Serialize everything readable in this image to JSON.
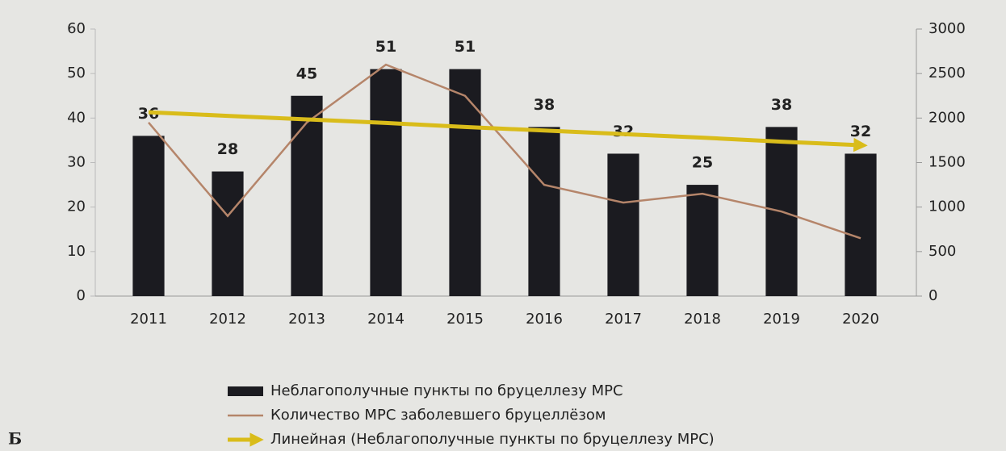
{
  "chart_data": {
    "type": "bar",
    "panel_label": "Б",
    "categories": [
      "2011",
      "2012",
      "2013",
      "2014",
      "2015",
      "2016",
      "2017",
      "2018",
      "2019",
      "2020"
    ],
    "series": [
      {
        "name": "Неблагополучные пункты по бруцеллезу МРС",
        "kind": "bar",
        "axis": "y",
        "color": "#1b1b20",
        "values": [
          36,
          28,
          45,
          51,
          51,
          38,
          32,
          25,
          38,
          32
        ]
      },
      {
        "name": "Количество МРС заболевшего бруцеллёзом",
        "kind": "line",
        "axis": "y2",
        "color": "#b5856a",
        "values": [
          1950,
          900,
          1950,
          2600,
          2250,
          1250,
          1050,
          1150,
          950,
          650
        ]
      },
      {
        "name": "Линейная (Неблагополучные пункты по бруцеллезу МРС)",
        "kind": "trend",
        "axis": "y",
        "color": "#d9bc1a",
        "values": [
          41.3,
          40.5,
          39.7,
          38.9,
          38.0,
          37.2,
          36.4,
          35.6,
          34.7,
          33.9
        ]
      }
    ],
    "ylim": [
      0,
      60
    ],
    "yticks": [
      0,
      10,
      20,
      30,
      40,
      50,
      60
    ],
    "y2lim": [
      0,
      3000
    ],
    "y2ticks": [
      0,
      500,
      1000,
      1500,
      2000,
      2500,
      3000
    ],
    "data_labels": true
  }
}
